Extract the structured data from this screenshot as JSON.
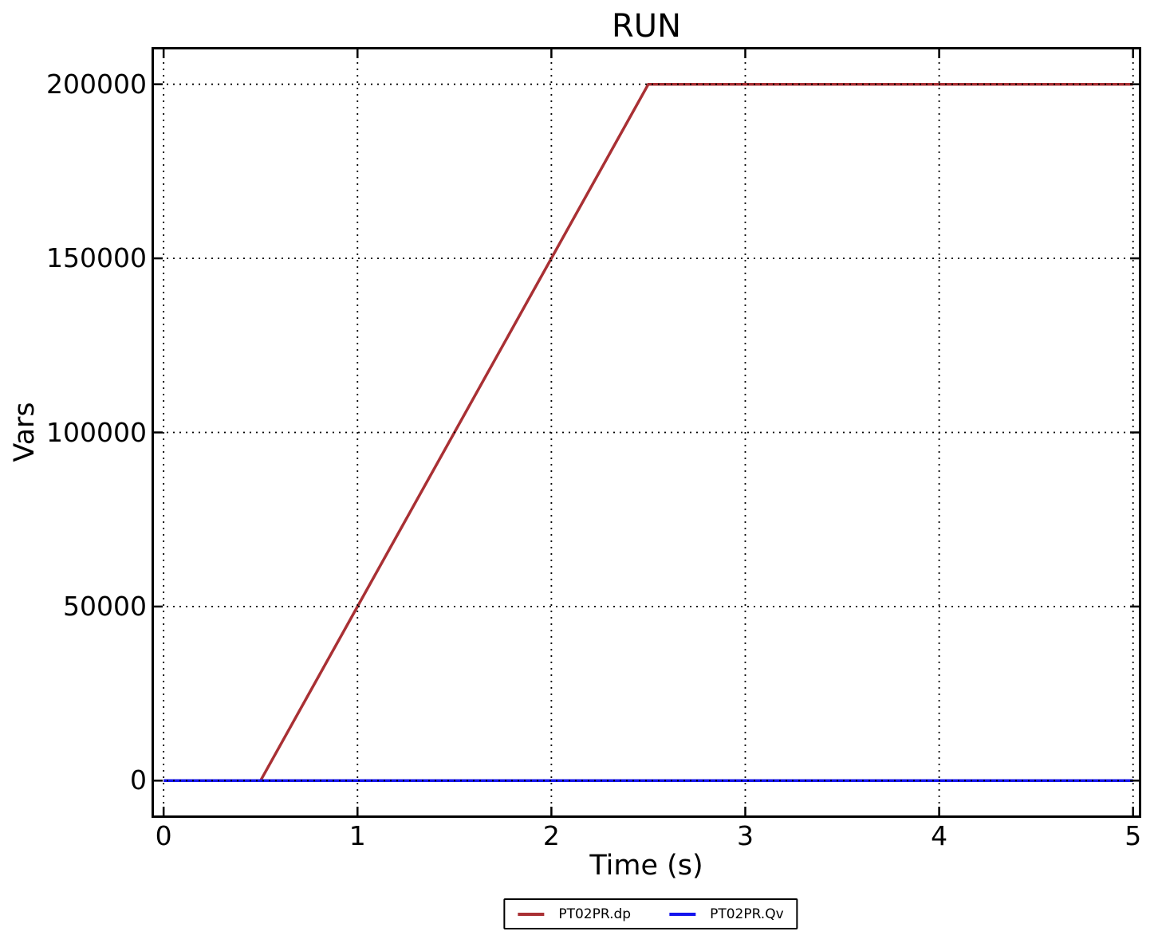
{
  "figure": {
    "background": "#FFFFFF"
  },
  "chart_data": {
    "type": "line",
    "title": "RUN",
    "xlabel": "Time (s)",
    "ylabel": "Vars",
    "x_ticks": [
      0,
      1,
      2,
      3,
      4,
      5
    ],
    "y_ticks": [
      0,
      50000,
      100000,
      150000,
      200000
    ],
    "xlim": [
      -0.05,
      5.03
    ],
    "ylim": [
      -10000,
      210000
    ],
    "grid": "dotted",
    "grid_color": "#000000",
    "grid_above_data": true,
    "legend_position": "bottom-center",
    "series": [
      {
        "name": "PT02PR.dp",
        "color": "#A93034",
        "points": [
          [
            0,
            0
          ],
          [
            0.5,
            0
          ],
          [
            2.5,
            200000
          ],
          [
            5,
            200000
          ]
        ]
      },
      {
        "name": "PT02PR.Qv",
        "color": "#1414EE",
        "points": [
          [
            0,
            0
          ],
          [
            5,
            0
          ]
        ]
      }
    ]
  }
}
